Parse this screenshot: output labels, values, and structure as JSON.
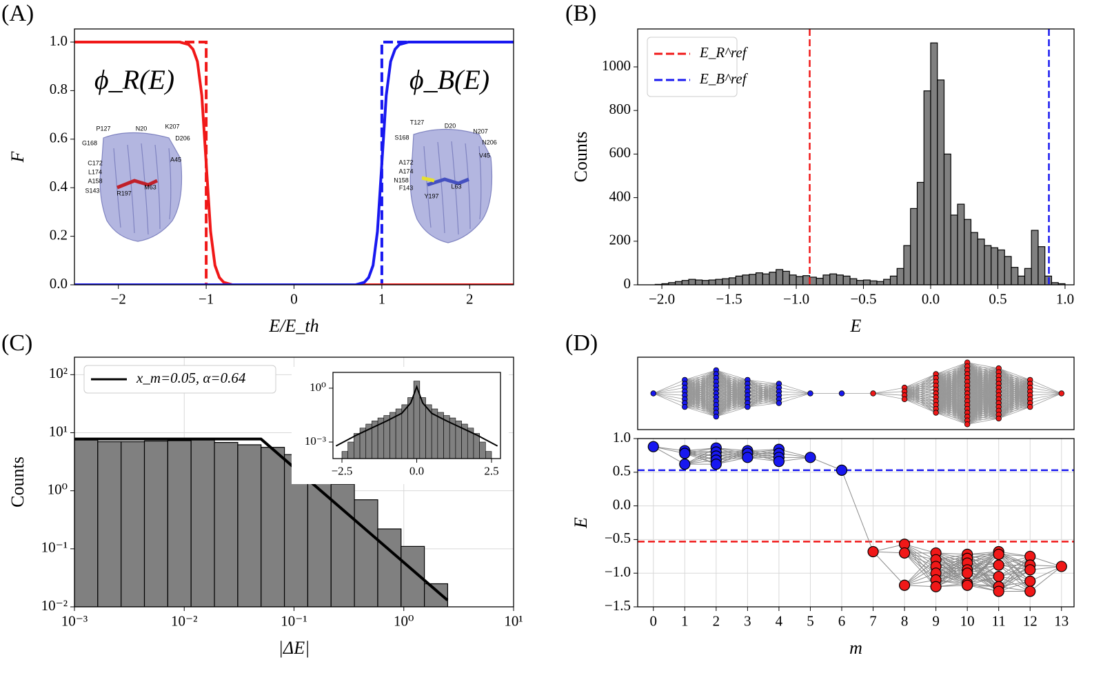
{
  "chart_data": [
    {
      "type": "line",
      "panel_label": "(A)",
      "x_label": "E/E_th",
      "y_label": "F",
      "xlim": [
        -2.5,
        2.5
      ],
      "ylim": [
        0,
        1.054
      ],
      "xticks": [
        {
          "value": -2,
          "label": "−2"
        },
        {
          "value": -1,
          "label": "−1"
        },
        0,
        1,
        2
      ],
      "yticks": [
        {
          "value": 0,
          "label": "0.0"
        },
        {
          "value": 0.2,
          "label": "0.2"
        },
        {
          "value": 0.4,
          "label": "0.4"
        },
        {
          "value": 0.6,
          "label": "0.6"
        },
        {
          "value": 0.8,
          "label": "0.8"
        },
        {
          "value": 1,
          "label": "1.0"
        }
      ],
      "series": [
        {
          "color": "#f01818",
          "dash": true,
          "x": [
            -2.5,
            -1,
            -1,
            2.5
          ],
          "values": [
            1,
            1,
            0,
            0
          ]
        },
        {
          "color": "#1818f0",
          "dash": true,
          "x": [
            -2.5,
            1,
            1,
            2.5
          ],
          "values": [
            0,
            0,
            1,
            1
          ]
        },
        {
          "color": "#f01818",
          "x": [
            -2.5,
            -1.3,
            -1.2,
            -1.15,
            -1.1,
            -1.05,
            -1.0,
            -0.95,
            -0.9,
            -0.85,
            -0.8,
            -0.7,
            0,
            0.7,
            0.8,
            0.85,
            0.9,
            0.95,
            1.0,
            1.05,
            1.1,
            1.15,
            1.2,
            1.3,
            2.5
          ],
          "values": [
            1,
            1,
            0.99,
            0.97,
            0.92,
            0.78,
            0.5,
            0.22,
            0.08,
            0.03,
            0.01,
            0,
            0,
            0,
            0,
            0,
            0,
            0,
            0,
            0,
            0,
            0,
            0,
            0,
            0
          ]
        },
        {
          "color": "#1818f0",
          "x": [
            -2.5,
            -1.3,
            -1.2,
            -1.15,
            -1.1,
            -1.05,
            -1.0,
            -0.95,
            -0.9,
            -0.85,
            -0.8,
            -0.7,
            0,
            0.7,
            0.8,
            0.85,
            0.9,
            0.95,
            1.0,
            1.05,
            1.1,
            1.15,
            1.2,
            1.3,
            2.5
          ],
          "values": [
            0,
            0,
            0,
            0,
            0,
            0,
            0,
            0,
            0,
            0,
            0,
            0,
            0,
            0,
            0.01,
            0.03,
            0.08,
            0.22,
            0.5,
            0.78,
            0.92,
            0.97,
            0.99,
            1,
            1
          ]
        }
      ],
      "annotations": [
        {
          "text": "ϕ_R(E)",
          "color": "#f01818"
        },
        {
          "text": "ϕ_B(E)",
          "color": "#1818f0"
        }
      ],
      "residue_labels": [
        [
          "P127",
          "N20",
          "K207",
          "G168",
          "D206",
          "A45",
          "C172",
          "L174",
          "A158",
          "S143",
          "R197",
          "M63"
        ],
        [
          "T127",
          "D20",
          "N207",
          "S168",
          "N206",
          "V45",
          "A172",
          "A174",
          "N158",
          "F143",
          "Y197",
          "L63"
        ]
      ]
    },
    {
      "type": "histogram",
      "panel_label": "(B)",
      "x_label": "E",
      "y_label": "Counts",
      "color": "#808080",
      "xlim": [
        -2.18,
        1.067
      ],
      "ylim": [
        0,
        1174
      ],
      "xticks": [
        {
          "value": -2,
          "label": "−2.0"
        },
        {
          "value": -1.5,
          "label": "−1.5"
        },
        {
          "value": -1,
          "label": "−1.0"
        },
        {
          "value": -0.5,
          "label": "−0.5"
        },
        {
          "value": 0,
          "label": "0.0"
        },
        {
          "value": 0.5,
          "label": "0.5"
        },
        {
          "value": 1,
          "label": "1.0"
        }
      ],
      "yticks": [
        0,
        200,
        400,
        600,
        800,
        1000
      ],
      "bins": [
        -2.05,
        -2,
        -1.95,
        -1.9,
        -1.85,
        -1.8,
        -1.75,
        -1.7,
        -1.65,
        -1.6,
        -1.55,
        -1.5,
        -1.45,
        -1.4,
        -1.35,
        -1.3,
        -1.25,
        -1.2,
        -1.15,
        -1.1,
        -1.05,
        -1,
        -0.95,
        -0.9,
        -0.85,
        -0.8,
        -0.75,
        -0.7,
        -0.65,
        -0.6,
        -0.55,
        -0.5,
        -0.45,
        -0.4,
        -0.35,
        -0.3,
        -0.25,
        -0.2,
        -0.15,
        -0.1,
        -0.05,
        0,
        0.05,
        0.1,
        0.15,
        0.2,
        0.25,
        0.3,
        0.35,
        0.4,
        0.45,
        0.5,
        0.55,
        0.6,
        0.65,
        0.7,
        0.75,
        0.8,
        0.85,
        0.9,
        0.95,
        1
      ],
      "values": [
        2,
        5,
        10,
        15,
        20,
        25,
        22,
        20,
        22,
        25,
        28,
        32,
        40,
        45,
        48,
        55,
        50,
        58,
        70,
        62,
        45,
        38,
        42,
        35,
        30,
        45,
        50,
        45,
        40,
        28,
        20,
        22,
        18,
        15,
        25,
        40,
        75,
        180,
        350,
        470,
        890,
        1110,
        940,
        600,
        320,
        370,
        300,
        240,
        210,
        180,
        170,
        160,
        130,
        80,
        40,
        75,
        250,
        175,
        40,
        10,
        5
      ],
      "ref_lines": [
        {
          "name": "E_R^ref",
          "color": "#f01818",
          "value": -0.9
        },
        {
          "name": "E_B^ref",
          "color": "#1818f0",
          "value": 0.88
        }
      ],
      "legend": "upper left"
    },
    {
      "type": "histogram",
      "panel_label": "(C)",
      "x_label": "|ΔE|",
      "y_label": "Counts",
      "color": "#808080",
      "xscale": "log",
      "yscale": "log",
      "grid": true,
      "xlim": [
        0.001,
        10
      ],
      "ylim": [
        0.01,
        200
      ],
      "xticks": [
        {
          "value": 0.001,
          "label": "10⁻³"
        },
        {
          "value": 0.01,
          "label": "10⁻²"
        },
        {
          "value": 0.1,
          "label": "10⁻¹"
        },
        {
          "value": 1,
          "label": "10⁰"
        },
        {
          "value": 10,
          "label": "10¹"
        }
      ],
      "yticks": [
        {
          "value": 0.01,
          "label": "10⁻²"
        },
        {
          "value": 0.1,
          "label": "10⁻¹"
        },
        {
          "value": 1,
          "label": "10⁰"
        },
        {
          "value": 10,
          "label": "10¹"
        },
        {
          "value": 100,
          "label": "10²"
        }
      ],
      "bins": [
        0.001,
        0.00163,
        0.00266,
        0.00434,
        0.00708,
        0.01155,
        0.01884,
        0.03073,
        0.05013,
        0.08177,
        0.1334,
        0.2176,
        0.3549,
        0.5789,
        0.9444,
        1.54,
        2.51
      ],
      "values": [
        7.5,
        7,
        7,
        7.2,
        7.3,
        7.5,
        6.8,
        6.2,
        5.6,
        4.2,
        2.7,
        1.3,
        0.7,
        0.22,
        0.11,
        0.025
      ],
      "series": [
        {
          "name": "x_m=0.05, α=0.64",
          "color": "#000000",
          "x": [
            0.001,
            0.05,
            2.5
          ],
          "values": [
            7.8,
            7.8,
            0.013
          ]
        }
      ],
      "legend": "upper left"
    },
    {
      "type": "histogram",
      "color": "#808080",
      "yscale": "log",
      "xlim": [
        -2.8,
        2.8
      ],
      "ylim": [
        0.00012,
        7.6
      ],
      "xticks": [
        {
          "value": -2.5,
          "label": "−2.5"
        },
        {
          "value": 0,
          "label": "0.0"
        },
        {
          "value": 2.5,
          "label": "2.5"
        }
      ],
      "yticks": [
        {
          "value": 0.001,
          "label": "10⁻³"
        },
        {
          "value": 1,
          "label": "10⁰"
        }
      ],
      "bins": [
        -2.5,
        -2.3,
        -2.1,
        -1.9,
        -1.7,
        -1.5,
        -1.3,
        -1.1,
        -0.9,
        -0.7,
        -0.5,
        -0.3,
        -0.1,
        0.1,
        0.3,
        0.5,
        0.7,
        0.9,
        1.1,
        1.3,
        1.5,
        1.7,
        1.9,
        2.1,
        2.3,
        2.5
      ],
      "values": [
        0.0003,
        0.001,
        0.003,
        0.006,
        0.01,
        0.015,
        0.022,
        0.03,
        0.045,
        0.07,
        0.12,
        0.3,
        2.5,
        0.3,
        0.12,
        0.07,
        0.045,
        0.03,
        0.022,
        0.015,
        0.01,
        0.006,
        0.003,
        0.001,
        0.0003
      ],
      "series": [
        {
          "color": "#000000",
          "x": [
            -2.7,
            -2,
            -1,
            -0.5,
            -0.2,
            0,
            0.2,
            0.5,
            1,
            2,
            2.7
          ],
          "values": [
            0.0006,
            0.0025,
            0.015,
            0.04,
            0.15,
            1.2,
            0.15,
            0.04,
            0.015,
            0.0025,
            0.0006
          ]
        }
      ]
    },
    {
      "type": "network",
      "panel_label": "(D)",
      "node_counts": [
        1,
        8,
        13,
        8,
        6,
        1,
        1,
        1,
        4,
        11,
        17,
        14,
        8,
        1
      ],
      "colors": [
        "#1818f0",
        "#1818f0",
        "#1818f0",
        "#1818f0",
        "#1818f0",
        "#1818f0",
        "#1818f0",
        "#f01818",
        "#f01818",
        "#f01818",
        "#f01818",
        "#f01818",
        "#f01818",
        "#f01818"
      ]
    },
    {
      "type": "scatter",
      "x_label": "m",
      "y_label": "E",
      "grid": true,
      "xlim": [
        -0.5,
        13.4
      ],
      "ylim": [
        -1.5,
        1.0
      ],
      "xticks": [
        0,
        1,
        2,
        3,
        4,
        5,
        6,
        7,
        8,
        9,
        10,
        11,
        12,
        13
      ],
      "yticks": [
        {
          "value": -1.5,
          "label": "−1.5"
        },
        {
          "value": -1,
          "label": "−1.0"
        },
        {
          "value": -0.5,
          "label": "−0.5"
        },
        {
          "value": 0,
          "label": "0.0"
        },
        {
          "value": 0.5,
          "label": "0.5"
        },
        {
          "value": 1,
          "label": "1.0"
        }
      ],
      "ref_lines": [
        {
          "color": "#1818f0",
          "value": 0.53
        },
        {
          "color": "#f01818",
          "value": -0.53
        }
      ],
      "series": [
        {
          "color": "#1818f0",
          "x": [
            0,
            1,
            1,
            1,
            2,
            2,
            2,
            2,
            2,
            3,
            3,
            3,
            4,
            4,
            4,
            4,
            5,
            6
          ],
          "values": [
            0.88,
            0.82,
            0.78,
            0.62,
            0.86,
            0.8,
            0.74,
            0.68,
            0.62,
            0.82,
            0.78,
            0.72,
            0.84,
            0.78,
            0.72,
            0.66,
            0.72,
            0.53
          ]
        },
        {
          "color": "#f01818",
          "x": [
            7,
            8,
            8,
            8,
            9,
            9,
            9,
            9,
            9,
            9,
            10,
            10,
            10,
            10,
            10,
            10,
            10,
            11,
            11,
            11,
            11,
            11,
            11,
            12,
            12,
            12,
            12,
            12,
            13
          ],
          "values": [
            -0.68,
            -0.57,
            -0.7,
            -1.18,
            -0.7,
            -0.8,
            -0.9,
            -1,
            -1.1,
            -1.2,
            -0.72,
            -0.78,
            -0.85,
            -0.95,
            -1,
            -1.15,
            -1.18,
            -0.68,
            -0.72,
            -0.88,
            -1.05,
            -1.2,
            -1.27,
            -0.75,
            -0.88,
            -0.95,
            -1.12,
            -1.27,
            -0.9
          ]
        }
      ]
    }
  ]
}
